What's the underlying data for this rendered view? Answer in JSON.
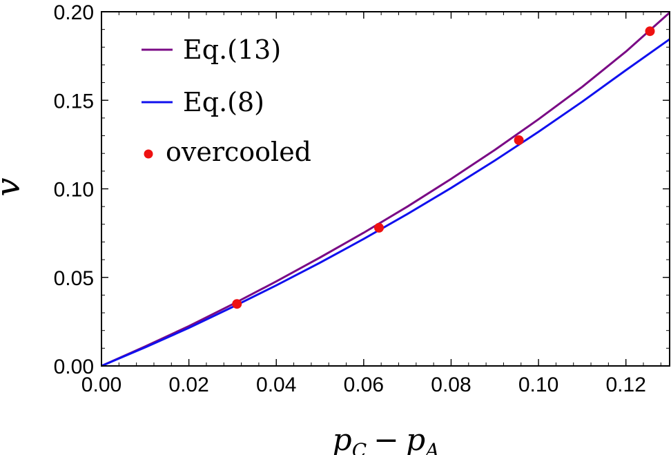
{
  "chart_data": {
    "type": "line",
    "title": "",
    "xlabel": {
      "main": "p",
      "sub1": "C",
      "op": "−",
      "main2": "p",
      "sub2": "A"
    },
    "ylabel": "v",
    "xlim": [
      0,
      0.13
    ],
    "ylim": [
      0,
      0.2
    ],
    "x_ticks": [
      "0.00",
      "0.02",
      "0.04",
      "0.06",
      "0.08",
      "0.10",
      "0.12"
    ],
    "x_tick_values": [
      0,
      0.02,
      0.04,
      0.06,
      0.08,
      0.1,
      0.12
    ],
    "y_ticks": [
      "0.00",
      "0.05",
      "0.10",
      "0.15",
      "0.20"
    ],
    "y_tick_values": [
      0,
      0.05,
      0.1,
      0.15,
      0.2
    ],
    "grid": false,
    "legend_position": "top-left",
    "series": [
      {
        "name": "Eq.(13)",
        "kind": "line",
        "color": "#7a0a85",
        "x": [
          0,
          0.01,
          0.02,
          0.03,
          0.04,
          0.05,
          0.06,
          0.07,
          0.08,
          0.09,
          0.1,
          0.11,
          0.12,
          0.13
        ],
        "y": [
          0,
          0.011,
          0.0225,
          0.0348,
          0.0477,
          0.0612,
          0.0752,
          0.09,
          0.1056,
          0.122,
          0.1393,
          0.1576,
          0.1775,
          0.1995
        ]
      },
      {
        "name": "Eq.(8)",
        "kind": "line",
        "color": "#1010ee",
        "x": [
          0,
          0.01,
          0.02,
          0.03,
          0.04,
          0.05,
          0.06,
          0.07,
          0.08,
          0.09,
          0.1,
          0.11,
          0.12,
          0.13
        ],
        "y": [
          0,
          0.0105,
          0.0215,
          0.0333,
          0.0455,
          0.0583,
          0.0717,
          0.0858,
          0.1005,
          0.116,
          0.1322,
          0.1492,
          0.167,
          0.1845
        ]
      },
      {
        "name": "overcooled",
        "kind": "scatter",
        "color": "#ee1111",
        "x": [
          0.031,
          0.0635,
          0.0955,
          0.1255
        ],
        "y": [
          0.035,
          0.078,
          0.1275,
          0.189
        ]
      }
    ]
  }
}
